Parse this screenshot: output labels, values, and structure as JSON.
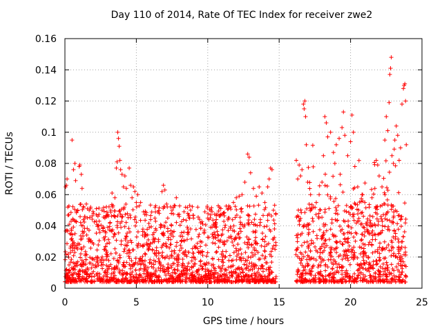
{
  "chart_data": {
    "type": "scatter",
    "title": "Day 110 of 2014, Rate Of TEC Index for receiver zwe2",
    "xlabel": "GPS time / hours",
    "ylabel": "ROTI / TECUs",
    "xlim": [
      0,
      25
    ],
    "ylim": [
      0,
      0.16
    ],
    "xticks": [
      "0",
      "5",
      "10",
      "15",
      "20",
      "25"
    ],
    "yticks": [
      "0",
      "0.02",
      "0.04",
      "0.06",
      "0.08",
      "0.1",
      "0.12",
      "0.14",
      "0.16"
    ],
    "grid": true,
    "marker": "+",
    "color": "#ff0000",
    "data_gap_hours": [
      14.8,
      16.1
    ],
    "series": [
      {
        "points": [
          [
            0.05,
            0.065
          ],
          [
            0.1,
            0.066
          ],
          [
            0.15,
            0.07
          ],
          [
            0.2,
            0.052
          ],
          [
            0.3,
            0.041
          ],
          [
            0.35,
            0.035
          ],
          [
            0.45,
            0.038
          ],
          [
            0.5,
            0.095
          ],
          [
            0.6,
            0.076
          ],
          [
            0.7,
            0.08
          ],
          [
            0.75,
            0.069
          ],
          [
            0.9,
            0.05
          ],
          [
            1.0,
            0.078
          ],
          [
            1.05,
            0.079
          ],
          [
            1.15,
            0.073
          ],
          [
            1.2,
            0.064
          ],
          [
            1.4,
            0.045
          ],
          [
            1.5,
            0.054
          ],
          [
            1.7,
            0.05
          ],
          [
            1.8,
            0.052
          ],
          [
            2.0,
            0.048
          ],
          [
            2.2,
            0.047
          ],
          [
            2.4,
            0.043
          ],
          [
            2.6,
            0.05
          ],
          [
            2.8,
            0.045
          ],
          [
            3.0,
            0.039
          ],
          [
            3.2,
            0.05
          ],
          [
            3.3,
            0.061
          ],
          [
            3.5,
            0.058
          ],
          [
            3.6,
            0.077
          ],
          [
            3.65,
            0.081
          ],
          [
            3.7,
            0.1
          ],
          [
            3.75,
            0.096
          ],
          [
            3.8,
            0.091
          ],
          [
            3.85,
            0.082
          ],
          [
            3.9,
            0.076
          ],
          [
            4.0,
            0.073
          ],
          [
            4.1,
            0.065
          ],
          [
            4.2,
            0.072
          ],
          [
            4.3,
            0.064
          ],
          [
            4.5,
            0.077
          ],
          [
            4.6,
            0.066
          ],
          [
            4.7,
            0.058
          ],
          [
            4.8,
            0.065
          ],
          [
            4.9,
            0.062
          ],
          [
            5.0,
            0.055
          ],
          [
            5.1,
            0.06
          ],
          [
            5.3,
            0.055
          ],
          [
            5.5,
            0.049
          ],
          [
            5.7,
            0.047
          ],
          [
            6.0,
            0.044
          ],
          [
            6.3,
            0.045
          ],
          [
            6.6,
            0.048
          ],
          [
            6.8,
            0.062
          ],
          [
            6.9,
            0.066
          ],
          [
            7.0,
            0.063
          ],
          [
            7.2,
            0.045
          ],
          [
            7.5,
            0.05
          ],
          [
            7.8,
            0.058
          ],
          [
            8.0,
            0.046
          ],
          [
            8.3,
            0.044
          ],
          [
            8.6,
            0.048
          ],
          [
            8.8,
            0.038
          ],
          [
            9.0,
            0.045
          ],
          [
            9.3,
            0.052
          ],
          [
            9.5,
            0.042
          ],
          [
            9.8,
            0.049
          ],
          [
            10.0,
            0.045
          ],
          [
            10.2,
            0.047
          ],
          [
            10.4,
            0.041
          ],
          [
            10.6,
            0.044
          ],
          [
            10.9,
            0.047
          ],
          [
            11.2,
            0.039
          ],
          [
            11.5,
            0.045
          ],
          [
            11.8,
            0.055
          ],
          [
            12.0,
            0.058
          ],
          [
            12.2,
            0.059
          ],
          [
            12.4,
            0.06
          ],
          [
            12.6,
            0.068
          ],
          [
            12.8,
            0.086
          ],
          [
            12.9,
            0.084
          ],
          [
            13.0,
            0.074
          ],
          [
            13.2,
            0.064
          ],
          [
            13.4,
            0.059
          ],
          [
            13.6,
            0.065
          ],
          [
            13.8,
            0.061
          ],
          [
            14.0,
            0.055
          ],
          [
            14.2,
            0.065
          ],
          [
            14.3,
            0.07
          ],
          [
            14.4,
            0.077
          ],
          [
            14.5,
            0.076
          ],
          [
            14.6,
            0.05
          ],
          [
            16.2,
            0.082
          ],
          [
            16.3,
            0.07
          ],
          [
            16.4,
            0.079
          ],
          [
            16.5,
            0.072
          ],
          [
            16.6,
            0.076
          ],
          [
            16.7,
            0.118
          ],
          [
            16.75,
            0.115
          ],
          [
            16.8,
            0.12
          ],
          [
            16.85,
            0.11
          ],
          [
            16.9,
            0.092
          ],
          [
            17.0,
            0.068
          ],
          [
            17.2,
            0.06
          ],
          [
            17.4,
            0.052
          ],
          [
            17.6,
            0.055
          ],
          [
            17.8,
            0.06
          ],
          [
            18.0,
            0.068
          ],
          [
            18.1,
            0.085
          ],
          [
            18.2,
            0.11
          ],
          [
            18.3,
            0.106
          ],
          [
            18.4,
            0.097
          ],
          [
            18.6,
            0.1
          ],
          [
            18.8,
            0.087
          ],
          [
            18.9,
            0.08
          ],
          [
            19.0,
            0.092
          ],
          [
            19.2,
            0.096
          ],
          [
            19.4,
            0.103
          ],
          [
            19.5,
            0.113
          ],
          [
            19.6,
            0.098
          ],
          [
            19.8,
            0.085
          ],
          [
            20.0,
            0.094
          ],
          [
            20.1,
            0.111
          ],
          [
            20.2,
            0.1
          ],
          [
            20.3,
            0.078
          ],
          [
            20.5,
            0.065
          ],
          [
            20.8,
            0.06
          ],
          [
            21.0,
            0.055
          ],
          [
            21.3,
            0.052
          ],
          [
            21.5,
            0.058
          ],
          [
            21.7,
            0.064
          ],
          [
            21.8,
            0.082
          ],
          [
            21.9,
            0.079
          ],
          [
            22.0,
            0.072
          ],
          [
            22.2,
            0.065
          ],
          [
            22.4,
            0.095
          ],
          [
            22.5,
            0.11
          ],
          [
            22.6,
            0.101
          ],
          [
            22.7,
            0.119
          ],
          [
            22.75,
            0.137
          ],
          [
            22.8,
            0.141
          ],
          [
            22.85,
            0.148
          ],
          [
            22.9,
            0.085
          ],
          [
            23.0,
            0.08
          ],
          [
            23.1,
            0.095
          ],
          [
            23.2,
            0.104
          ],
          [
            23.3,
            0.098
          ],
          [
            23.4,
            0.082
          ],
          [
            23.5,
            0.09
          ],
          [
            23.6,
            0.118
          ],
          [
            23.7,
            0.128
          ],
          [
            23.75,
            0.13
          ],
          [
            23.8,
            0.131
          ],
          [
            23.85,
            0.12
          ],
          [
            23.9,
            0.092
          ]
        ]
      }
    ]
  }
}
